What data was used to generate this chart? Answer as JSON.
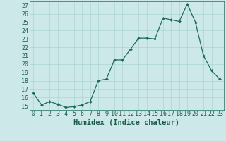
{
  "x": [
    0,
    1,
    2,
    3,
    4,
    5,
    6,
    7,
    8,
    9,
    10,
    11,
    12,
    13,
    14,
    15,
    16,
    17,
    18,
    19,
    20,
    21,
    22,
    23
  ],
  "y": [
    16.5,
    15.1,
    15.5,
    15.2,
    14.8,
    14.9,
    15.1,
    15.5,
    18.0,
    18.2,
    20.5,
    20.5,
    21.8,
    23.1,
    23.1,
    23.0,
    25.5,
    25.3,
    25.1,
    27.2,
    25.0,
    21.0,
    19.2,
    18.2
  ],
  "xlabel": "Humidex (Indice chaleur)",
  "ylabel": "",
  "ylim": [
    14.5,
    27.5
  ],
  "yticks": [
    15,
    16,
    17,
    18,
    19,
    20,
    21,
    22,
    23,
    24,
    25,
    26,
    27
  ],
  "xlim": [
    -0.5,
    23.5
  ],
  "xticks": [
    0,
    1,
    2,
    3,
    4,
    5,
    6,
    7,
    8,
    9,
    10,
    11,
    12,
    13,
    14,
    15,
    16,
    17,
    18,
    19,
    20,
    21,
    22,
    23
  ],
  "xtick_labels": [
    "0",
    "1",
    "2",
    "3",
    "4",
    "5",
    "6",
    "7",
    "8",
    "9",
    "10",
    "11",
    "12",
    "13",
    "14",
    "15",
    "16",
    "17",
    "18",
    "19",
    "20",
    "21",
    "22",
    "23"
  ],
  "line_color": "#1a6b5a",
  "marker": "D",
  "marker_size": 2.0,
  "bg_color": "#cce8e8",
  "grid_color": "#aad4d4",
  "label_color": "#1a5c4a",
  "tick_color": "#1a5c4a",
  "font_size_axis": 7.5,
  "font_size_tick": 6.0
}
